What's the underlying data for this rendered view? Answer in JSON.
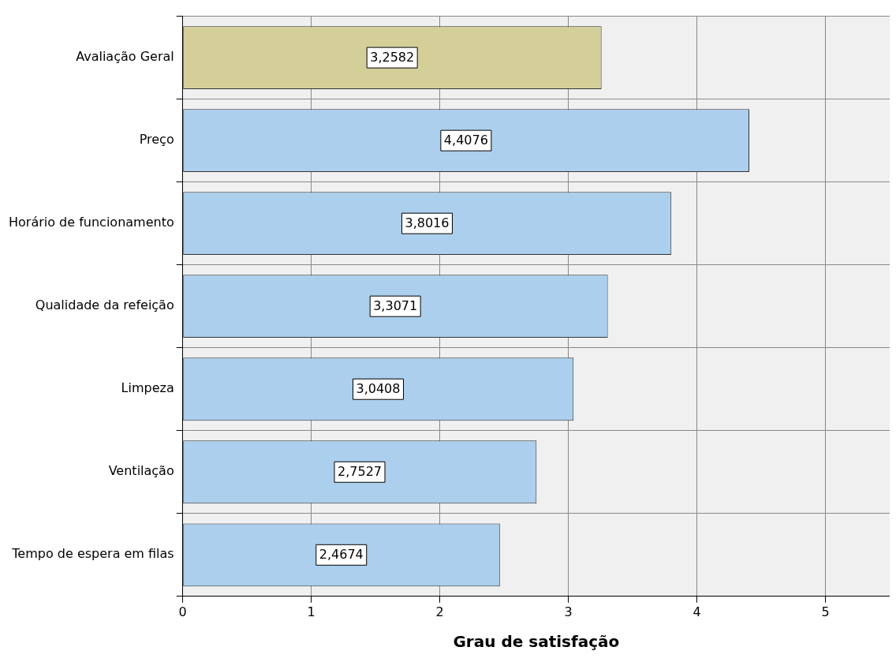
{
  "chart_data": {
    "type": "bar",
    "orientation": "horizontal",
    "xlabel": "Grau de satisfação",
    "categories": [
      "Avaliação Geral",
      "Preço",
      "Horário de funcionamento",
      "Qualidade da refeição",
      "Limpeza",
      "Ventilação",
      "Tempo de espera em filas"
    ],
    "values": [
      3.2582,
      4.4076,
      3.8016,
      3.3071,
      3.0408,
      2.7527,
      2.4674
    ],
    "colors": [
      "#d4cf98",
      "#abcfed",
      "#abcfed",
      "#abcfed",
      "#abcfed",
      "#abcfed",
      "#abcfed"
    ],
    "value_labels": [
      "3,2582",
      "4,4076",
      "3,8016",
      "3,3071",
      "3,0408",
      "2,7527",
      "2,4674"
    ],
    "xlim": [
      0,
      5.5
    ],
    "xticks": [
      0,
      1,
      2,
      3,
      4,
      5
    ],
    "grid": true,
    "legend": false
  }
}
